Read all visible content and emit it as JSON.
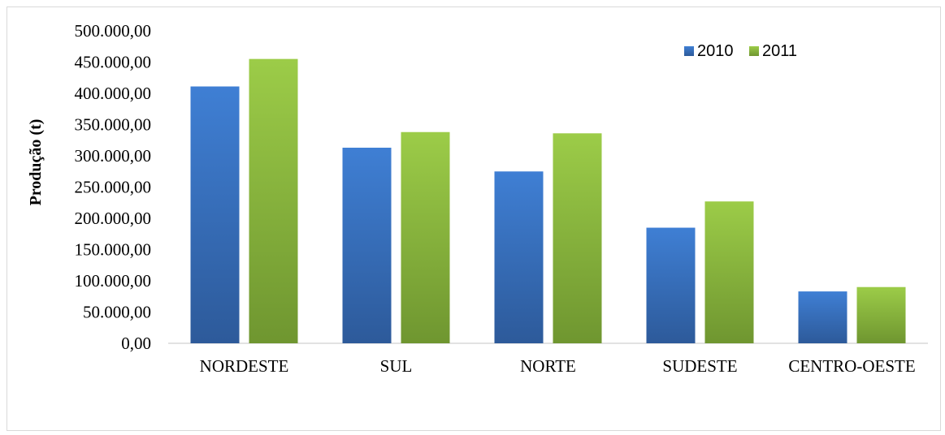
{
  "chart_data": {
    "type": "bar",
    "categories": [
      "NORDESTE",
      "SUL",
      "NORTE",
      "SUDESTE",
      "CENTRO-OESTE"
    ],
    "series": [
      {
        "name": "2010",
        "values": [
          411000,
          313000,
          275000,
          185000,
          83000
        ],
        "color": "#3a73c4"
      },
      {
        "name": "2011",
        "values": [
          455000,
          338000,
          336000,
          227000,
          90000
        ],
        "color": "#8db63c"
      }
    ],
    "ylabel": "Produção (t)",
    "xlabel": "",
    "ylim": [
      0,
      500000
    ],
    "yticks": [
      0,
      50000,
      100000,
      150000,
      200000,
      250000,
      300000,
      350000,
      400000,
      450000,
      500000
    ],
    "ytick_labels": [
      "0,00",
      "50.000,00",
      "100.000,00",
      "150.000,00",
      "200.000,00",
      "250.000,00",
      "300.000,00",
      "350.000,00",
      "400.000,00",
      "450.000,00",
      "500.000,00"
    ],
    "grid": false,
    "legend_position": "top-right"
  }
}
